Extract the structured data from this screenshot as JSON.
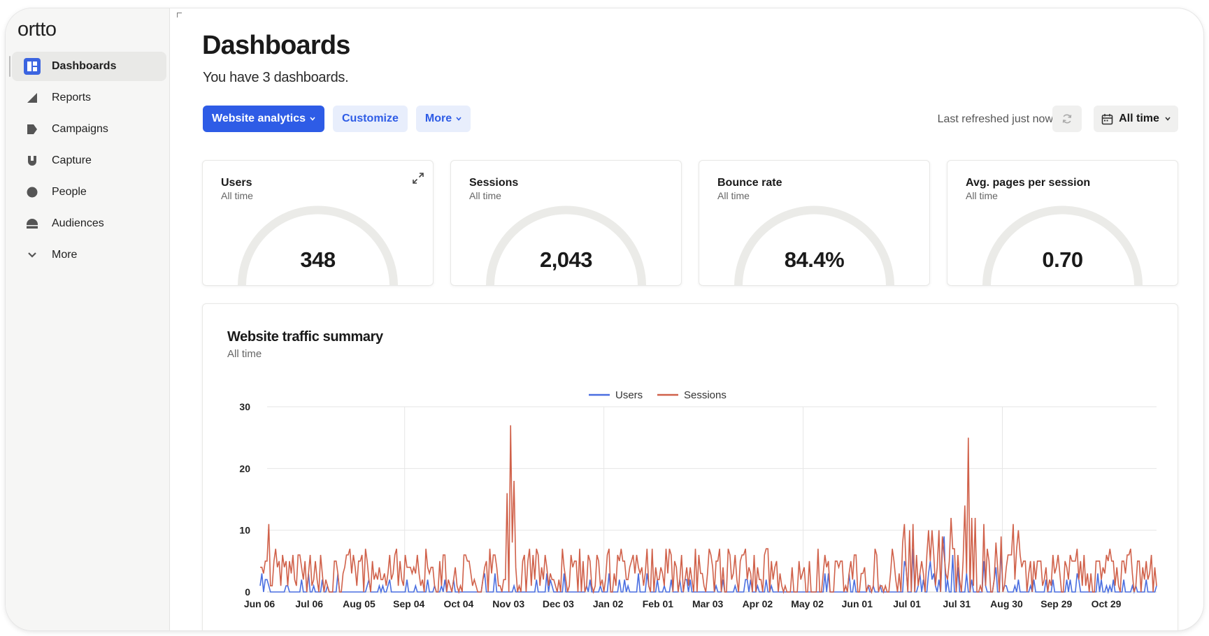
{
  "app": {
    "logo": "ortto"
  },
  "sidebar": {
    "items": [
      {
        "label": "Dashboards",
        "icon": "dashboard-icon",
        "active": true
      },
      {
        "label": "Reports",
        "icon": "reports-icon"
      },
      {
        "label": "Campaigns",
        "icon": "campaigns-icon"
      },
      {
        "label": "Capture",
        "icon": "capture-icon"
      },
      {
        "label": "People",
        "icon": "people-icon"
      },
      {
        "label": "Audiences",
        "icon": "audiences-icon"
      },
      {
        "label": "More",
        "icon": "chevron-down-icon"
      }
    ]
  },
  "header": {
    "title": "Dashboards",
    "subtitle": "You have 3 dashboards.",
    "dashboard_select": "Website analytics",
    "customize_label": "Customize",
    "more_label": "More",
    "last_refreshed": "Last refreshed just now",
    "date_range": "All time"
  },
  "colors": {
    "accent": "#2e5ce6",
    "users_series": "#4a6ee0",
    "sessions_series": "#d0614a",
    "gauge_track": "#ebebe8"
  },
  "metrics": [
    {
      "title": "Users",
      "period": "All time",
      "value": "348"
    },
    {
      "title": "Sessions",
      "period": "All time",
      "value": "2,043"
    },
    {
      "title": "Bounce rate",
      "period": "All time",
      "value": "84.4%"
    },
    {
      "title": "Avg. pages per session",
      "period": "All time",
      "value": "0.70"
    }
  ],
  "traffic": {
    "title": "Website traffic summary",
    "period": "All time"
  },
  "chart_data": {
    "type": "line",
    "title": "Website traffic summary",
    "x_ticks": [
      "Jun 06",
      "Jul 06",
      "Aug 05",
      "Sep 04",
      "Oct 04",
      "Nov 03",
      "Dec 03",
      "Jan 02",
      "Feb 01",
      "Mar 03",
      "Apr 02",
      "May 02",
      "Jun 01",
      "Jul 01",
      "Jul 31",
      "Aug 30",
      "Sep 29",
      "Oct 29"
    ],
    "y_ticks": [
      0,
      10,
      20,
      30
    ],
    "ylim": [
      0,
      30
    ],
    "grid": true,
    "legend_position": "top-center",
    "notable_values": {
      "sessions_peak_nov": 27,
      "sessions_peak_jul31": 25,
      "users_peak_jul": 9
    },
    "series": [
      {
        "name": "Users",
        "color": "#4a6ee0",
        "typical_range": [
          0,
          3
        ]
      },
      {
        "name": "Sessions",
        "color": "#d0614a",
        "typical_range": [
          0,
          10
        ]
      }
    ]
  }
}
